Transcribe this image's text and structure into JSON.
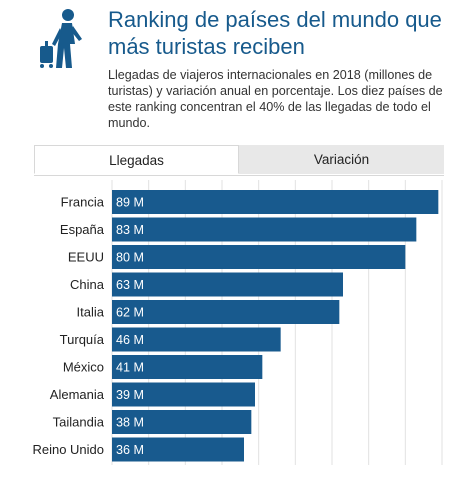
{
  "header": {
    "title": "Ranking de países del mundo que más turistas reciben",
    "subtitle": "Llegadas de viajeros internacionales en 2018 (millones de turistas) y variación anual en porcentaje. Los diez países de este ranking concentran el 40% de las llegadas de todo el mundo.",
    "logo_icon": "traveler-with-suitcase-icon"
  },
  "tabs": [
    {
      "label": "Llegadas",
      "active": true
    },
    {
      "label": "Variación",
      "active": false
    }
  ],
  "colors": {
    "bar": "#185a8e",
    "title": "#175a8c",
    "grid": "#e2e2e2",
    "tab_inactive": "#e8e8e8"
  },
  "chart_data": {
    "type": "bar",
    "orientation": "horizontal",
    "categories": [
      "Francia",
      "España",
      "EEUU",
      "China",
      "Italia",
      "Turquía",
      "México",
      "Alemania",
      "Tailandia",
      "Reino Unido"
    ],
    "values": [
      89,
      83,
      80,
      63,
      62,
      46,
      41,
      39,
      38,
      36
    ],
    "value_labels": [
      "89 M",
      "83 M",
      "80 M",
      "63 M",
      "62 M",
      "46 M",
      "41 M",
      "39 M",
      "38 M",
      "36 M"
    ],
    "xlim": [
      0,
      90
    ],
    "grid": true
  }
}
